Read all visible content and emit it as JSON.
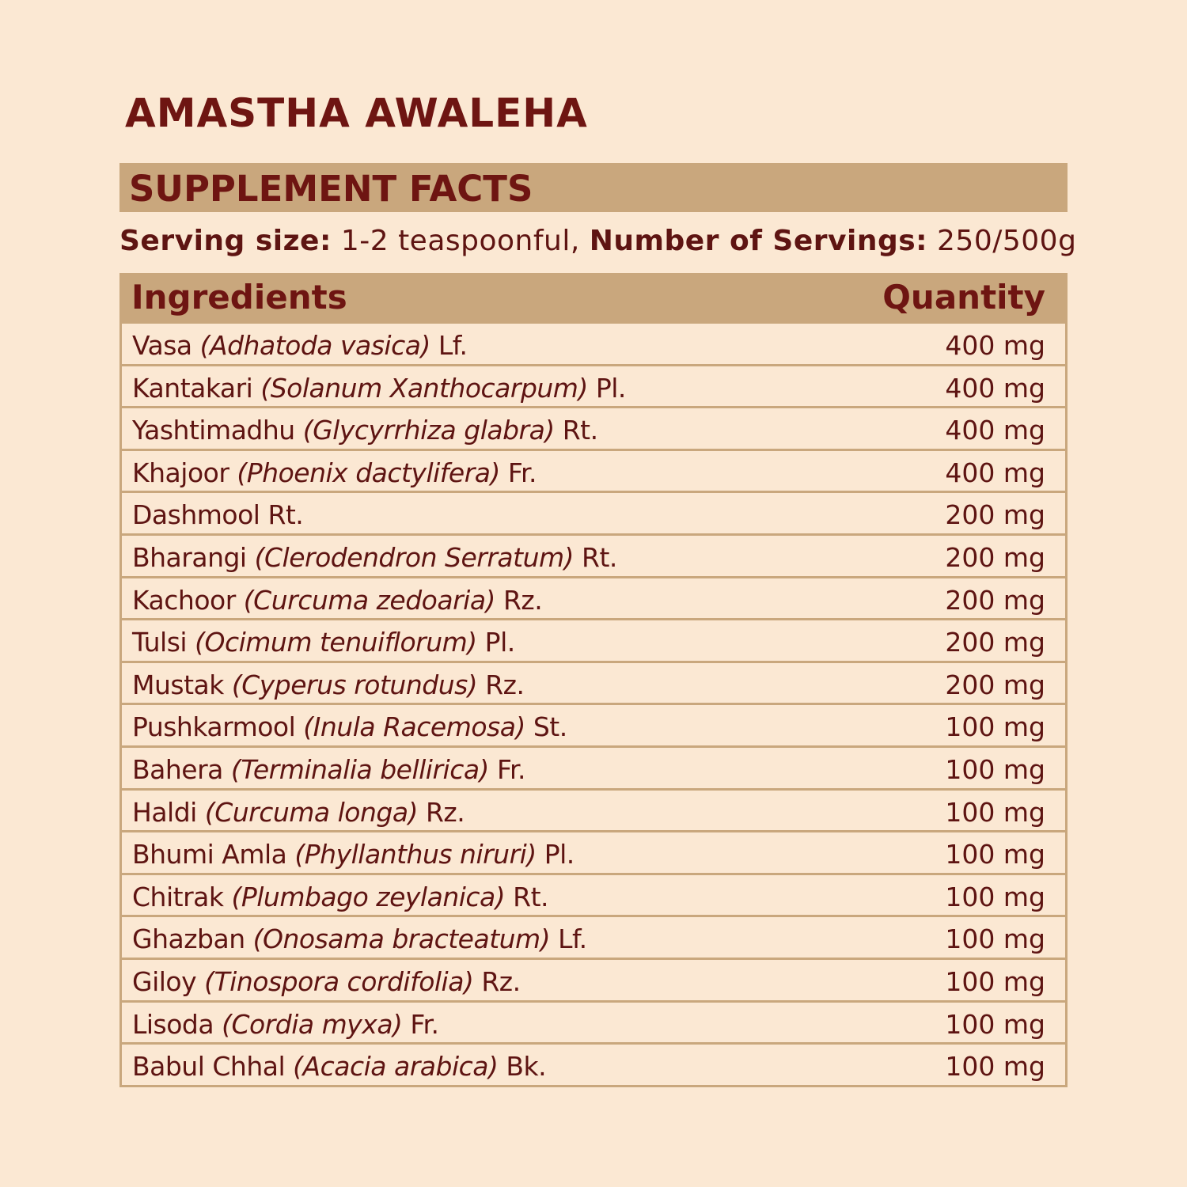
{
  "title": "AMASTHA AWALEHA",
  "section_heading": "SUPPLEMENT FACTS",
  "serving": {
    "size_label": "Serving size:",
    "size_value": "1-2 teaspoonful,",
    "servings_label": "Number of Servings:",
    "servings_value": "250/500g"
  },
  "colors": {
    "background": "#fbe8d3",
    "header_bar": "#c9a77d",
    "text": "#6e1512"
  },
  "table": {
    "headers": {
      "ingredients": "Ingredients",
      "quantity": "Quantity"
    },
    "rows": [
      {
        "name": "Vasa",
        "latin": "(Adhatoda vasica)",
        "part": "Lf.",
        "qty": "400 mg"
      },
      {
        "name": "Kantakari",
        "latin": "(Solanum Xanthocarpum)",
        "part": "Pl.",
        "qty": "400 mg"
      },
      {
        "name": "Yashtimadhu",
        "latin": "(Glycyrrhiza glabra)",
        "part": "Rt.",
        "qty": "400 mg"
      },
      {
        "name": "Khajoor",
        "latin": "(Phoenix dactylifera)",
        "part": "Fr.",
        "qty": "400 mg"
      },
      {
        "name": "Dashmool",
        "latin": "",
        "part": "Rt.",
        "qty": "200 mg"
      },
      {
        "name": "Bharangi",
        "latin": "(Clerodendron Serratum)",
        "part": "Rt.",
        "qty": "200 mg"
      },
      {
        "name": "Kachoor",
        "latin": "(Curcuma zedoaria)",
        "part": "Rz.",
        "qty": "200 mg"
      },
      {
        "name": "Tulsi",
        "latin": "(Ocimum tenuiflorum)",
        "part": "Pl.",
        "qty": "200 mg"
      },
      {
        "name": "Mustak",
        "latin": "(Cyperus rotundus)",
        "part": "Rz.",
        "qty": "200 mg"
      },
      {
        "name": "Pushkarmool",
        "latin": "(Inula Racemosa)",
        "part": "St.",
        "qty": "100 mg"
      },
      {
        "name": "Bahera",
        "latin": "(Terminalia bellirica)",
        "part": "Fr.",
        "qty": "100 mg"
      },
      {
        "name": "Haldi",
        "latin": "(Curcuma longa)",
        "part": "Rz.",
        "qty": "100 mg"
      },
      {
        "name": "Bhumi Amla",
        "latin": "(Phyllanthus niruri)",
        "part": "Pl.",
        "qty": "100 mg"
      },
      {
        "name": "Chitrak",
        "latin": "(Plumbago zeylanica)",
        "part": "Rt.",
        "qty": "100 mg"
      },
      {
        "name": "Ghazban",
        "latin": "(Onosama bracteatum)",
        "part": "Lf.",
        "qty": "100 mg"
      },
      {
        "name": "Giloy",
        "latin": "(Tinospora cordifolia)",
        "part": "Rz.",
        "qty": "100 mg"
      },
      {
        "name": "Lisoda",
        "latin": "(Cordia myxa)",
        "part": "Fr.",
        "qty": "100 mg"
      },
      {
        "name": "Babul Chhal",
        "latin": "(Acacia arabica)",
        "part": "Bk.",
        "qty": "100 mg"
      }
    ]
  }
}
